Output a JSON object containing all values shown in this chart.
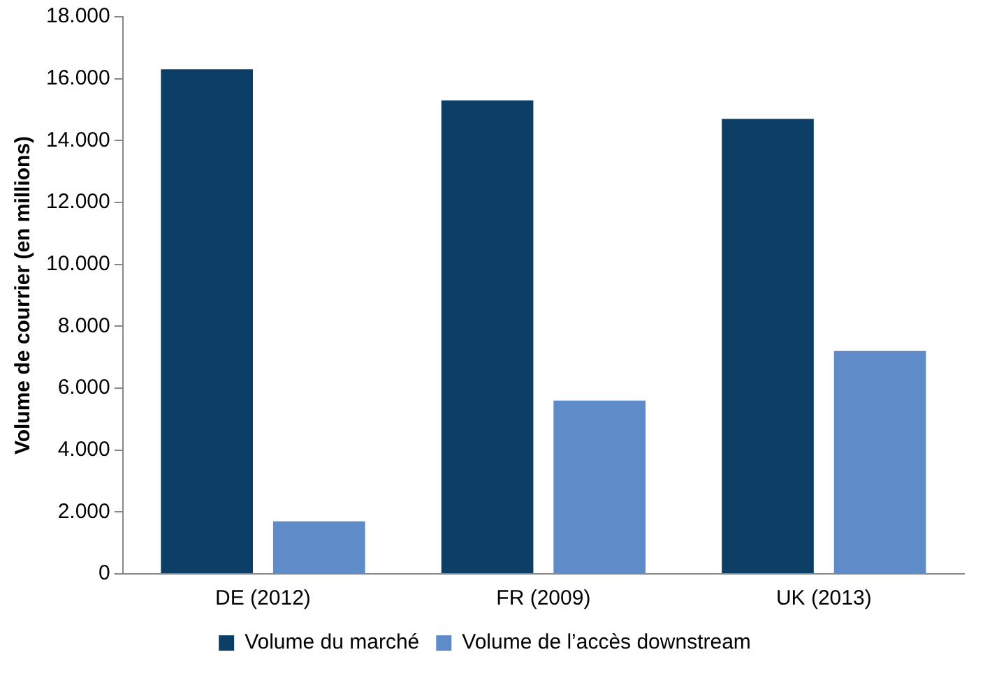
{
  "chart_data": {
    "type": "bar",
    "ylabel": "Volume de courrier (en millions)",
    "categories": [
      "DE (2012)",
      "FR (2009)",
      "UK (2013)"
    ],
    "series": [
      {
        "name": "Volume du marché",
        "color": "#0d3f66",
        "values": [
          16300,
          15300,
          14700
        ]
      },
      {
        "name": "Volume de l’accès downstream",
        "color": "#5f8bc9",
        "values": [
          1700,
          5600,
          7200
        ]
      }
    ],
    "ylim": [
      0,
      18000
    ],
    "yticks": [
      {
        "value": 0,
        "label": "0"
      },
      {
        "value": 2000,
        "label": "2.000"
      },
      {
        "value": 4000,
        "label": "4.000"
      },
      {
        "value": 6000,
        "label": "6.000"
      },
      {
        "value": 8000,
        "label": "8.000"
      },
      {
        "value": 10000,
        "label": "10.000"
      },
      {
        "value": 12000,
        "label": "12.000"
      },
      {
        "value": 14000,
        "label": "14.000"
      },
      {
        "value": 16000,
        "label": "16.000"
      },
      {
        "value": 18000,
        "label": "18.000"
      }
    ],
    "grid": false,
    "legend": "bottom"
  }
}
